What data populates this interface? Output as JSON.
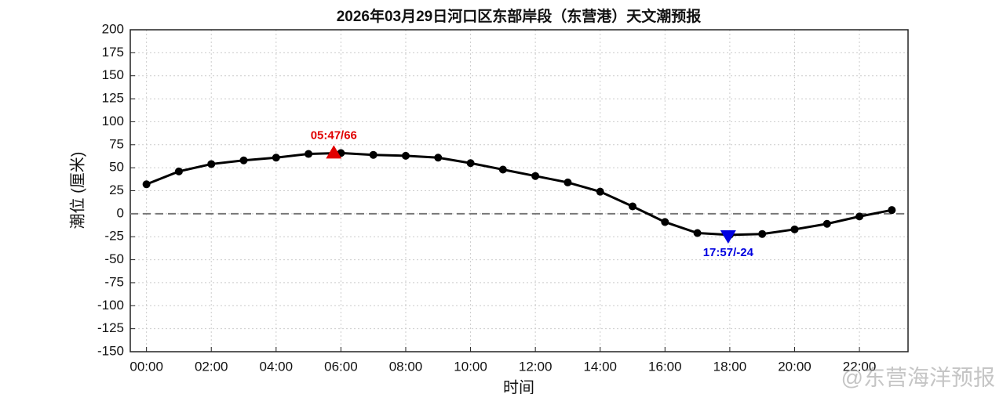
{
  "chart_data": {
    "type": "line",
    "title": "2026年03月29日河口区东部岸段（东营港）天文潮预报",
    "y_label": "潮位 (厘米)",
    "x_label": "时间",
    "x": [
      0,
      1,
      2,
      3,
      4,
      5,
      6,
      7,
      8,
      9,
      10,
      11,
      12,
      13,
      14,
      15,
      16,
      17,
      18,
      19,
      20,
      21,
      22,
      23
    ],
    "values": [
      32,
      46,
      54,
      58,
      61,
      65,
      66,
      64,
      63,
      61,
      55,
      48,
      41,
      34,
      24,
      8,
      -9,
      -21,
      -23,
      -22,
      -17,
      -11,
      -3,
      4
    ],
    "color": "#000000",
    "xlim": [
      -0.5,
      23.5
    ],
    "xticks": [
      {
        "value": 0,
        "label": "00:00"
      },
      {
        "value": 2,
        "label": "02:00"
      },
      {
        "value": 4,
        "label": "04:00"
      },
      {
        "value": 6,
        "label": "06:00"
      },
      {
        "value": 8,
        "label": "08:00"
      },
      {
        "value": 10,
        "label": "10:00"
      },
      {
        "value": 12,
        "label": "12:00"
      },
      {
        "value": 14,
        "label": "14:00"
      },
      {
        "value": 16,
        "label": "16:00"
      },
      {
        "value": 18,
        "label": "18:00"
      },
      {
        "value": 20,
        "label": "20:00"
      },
      {
        "value": 22,
        "label": "22:00"
      }
    ],
    "ylim": [
      -150,
      200
    ],
    "yticks": [
      -150,
      -125,
      -100,
      -75,
      -50,
      -25,
      0,
      25,
      50,
      75,
      100,
      125,
      150,
      175,
      200
    ],
    "grid": true,
    "reference_line": 0,
    "annotations": [
      {
        "x": 5.78,
        "y": 66,
        "label": "05:47/66",
        "color": "#e00000",
        "marker": "up"
      },
      {
        "x": 17.95,
        "y": -24,
        "label": "17:57/-24",
        "color": "#0000e0",
        "marker": "down"
      }
    ],
    "watermark": "@东营海洋预报"
  }
}
